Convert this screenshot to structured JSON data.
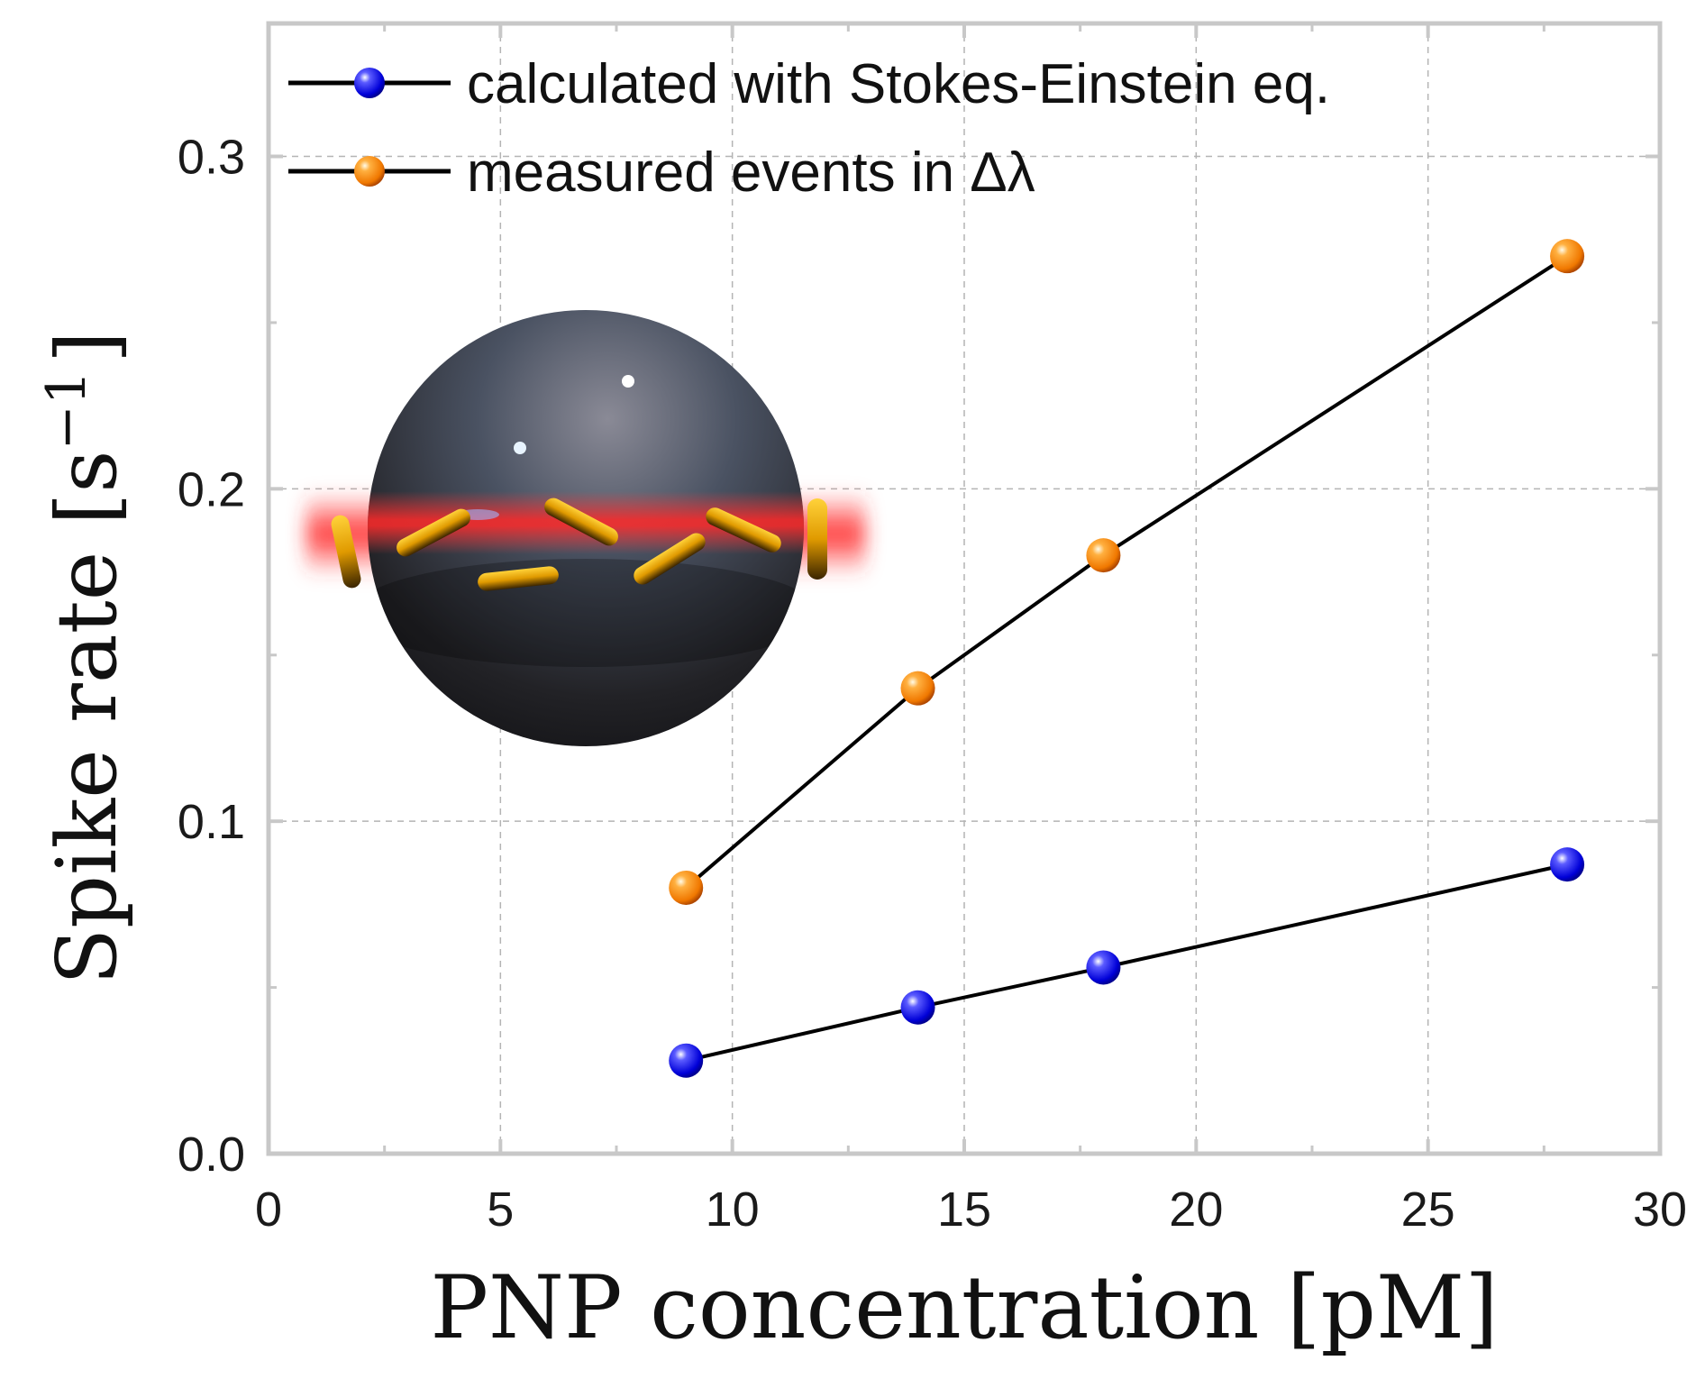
{
  "colors": {
    "calculated": "#1a1aff",
    "measured": "#ff8c00",
    "line": "#000000",
    "frame": "#c8c8c8",
    "grid": "#b4b4b4"
  },
  "chart_data": {
    "type": "line",
    "xlabel": "PNP concentration [pM]",
    "ylabel": "Spike rate [s",
    "ylabel_superscript": "−1",
    "ylabel_close": "]",
    "xlim": [
      0,
      30
    ],
    "ylim": [
      0,
      0.34
    ],
    "xticks": [
      "0",
      "5",
      "10",
      "15",
      "20",
      "25",
      "30"
    ],
    "yticks": [
      "0.0",
      "0.1",
      "0.2",
      "0.3"
    ],
    "grid": true,
    "legend_position": "top-left",
    "x": [
      9,
      14,
      18,
      28
    ],
    "series": [
      {
        "name": "calculated with Stokes-Einstein eq.",
        "marker_color": "blue",
        "values": [
          0.028,
          0.044,
          0.056,
          0.087
        ]
      },
      {
        "name": "measured events in Δλ",
        "marker_color": "orange",
        "values": [
          0.08,
          0.14,
          0.18,
          0.27
        ]
      }
    ],
    "inset_illustration": "sphere-with-nanorods-icon"
  }
}
